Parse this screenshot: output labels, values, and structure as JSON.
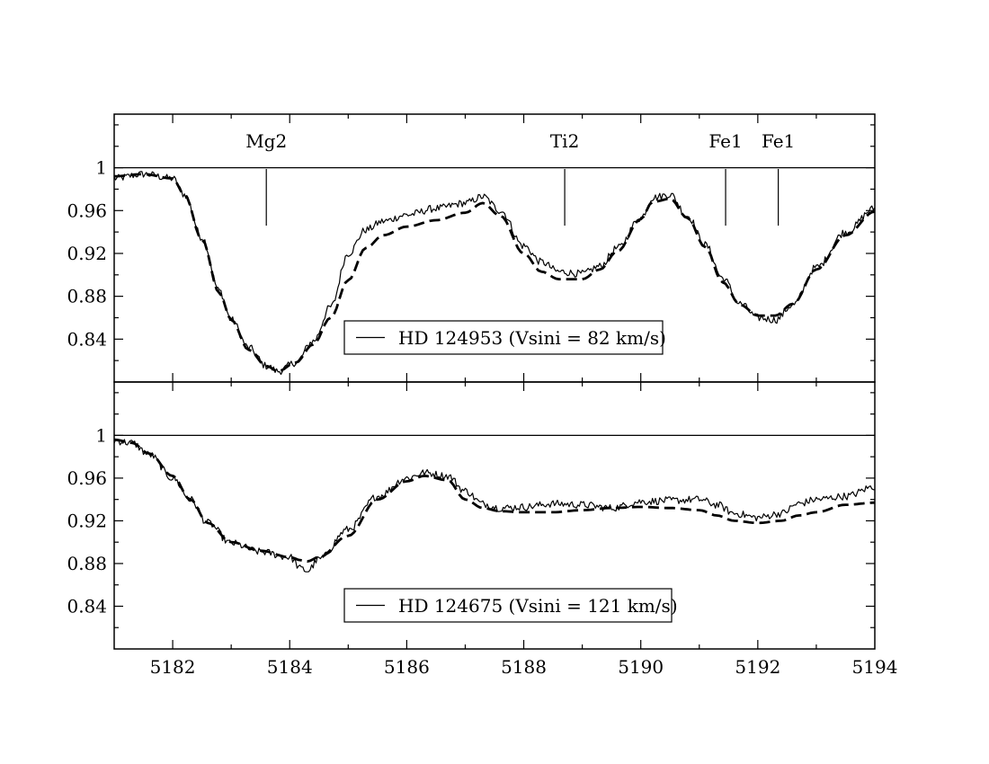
{
  "chart_data": [
    {
      "type": "line",
      "xlim": [
        5181,
        5194
      ],
      "ylim": [
        0.8,
        1.05
      ],
      "yticks": [
        0.84,
        0.88,
        0.92,
        0.96,
        1
      ],
      "ytick_labels": [
        "0.84",
        "0.88",
        "0.92",
        "0.96",
        "1"
      ],
      "xticks": [
        5182,
        5184,
        5186,
        5188,
        5190,
        5192,
        5194
      ],
      "xtick_labels": [
        "",
        "",
        "",
        "",
        "",
        "",
        ""
      ],
      "reference_line": 1.0,
      "line_markers": [
        {
          "label": "Mg2",
          "x": 5183.6
        },
        {
          "label": "Ti2",
          "x": 5188.7
        },
        {
          "label": "Fe1",
          "x": 5191.45
        },
        {
          "label": "Fe1",
          "x": 5192.35
        }
      ],
      "legend": {
        "label": "HD 124953 (Vsini = 82 km/s)",
        "placement": "lower-center"
      },
      "series": [
        {
          "name": "HD 124953 (Vsini = 82 km/s)",
          "style": "solid",
          "noise_amplitude": 0.0035,
          "x": [
            5181.0,
            5181.5,
            5182.0,
            5182.2,
            5182.5,
            5182.8,
            5183.0,
            5183.3,
            5183.6,
            5183.8,
            5184.1,
            5184.4,
            5184.7,
            5185.0,
            5185.3,
            5185.6,
            5186.0,
            5186.5,
            5187.0,
            5187.3,
            5187.6,
            5188.0,
            5188.3,
            5188.6,
            5189.0,
            5189.3,
            5189.6,
            5190.0,
            5190.2,
            5190.5,
            5190.8,
            5191.1,
            5191.4,
            5191.7,
            5192.0,
            5192.3,
            5192.6,
            5193.0,
            5193.5,
            5194.0
          ],
          "y": [
            0.99,
            0.994,
            0.99,
            0.975,
            0.935,
            0.885,
            0.858,
            0.832,
            0.815,
            0.81,
            0.818,
            0.838,
            0.87,
            0.92,
            0.942,
            0.95,
            0.956,
            0.962,
            0.967,
            0.973,
            0.96,
            0.927,
            0.912,
            0.903,
            0.901,
            0.908,
            0.925,
            0.953,
            0.972,
            0.975,
            0.955,
            0.928,
            0.897,
            0.873,
            0.86,
            0.858,
            0.872,
            0.907,
            0.94,
            0.962
          ]
        },
        {
          "name": "",
          "style": "dashed",
          "noise_amplitude": 0,
          "x": [
            5181.0,
            5181.5,
            5182.0,
            5182.2,
            5182.5,
            5182.8,
            5183.0,
            5183.3,
            5183.6,
            5183.8,
            5184.1,
            5184.4,
            5184.7,
            5185.0,
            5185.3,
            5185.6,
            5186.0,
            5186.5,
            5187.0,
            5187.3,
            5187.6,
            5188.0,
            5188.3,
            5188.6,
            5189.0,
            5189.3,
            5189.6,
            5190.0,
            5190.2,
            5190.5,
            5190.8,
            5191.1,
            5191.4,
            5191.7,
            5192.0,
            5192.3,
            5192.6,
            5193.0,
            5193.5,
            5194.0
          ],
          "y": [
            0.992,
            0.994,
            0.99,
            0.975,
            0.933,
            0.883,
            0.858,
            0.83,
            0.815,
            0.81,
            0.818,
            0.835,
            0.86,
            0.895,
            0.925,
            0.937,
            0.945,
            0.951,
            0.958,
            0.967,
            0.955,
            0.92,
            0.903,
            0.896,
            0.896,
            0.905,
            0.922,
            0.952,
            0.968,
            0.971,
            0.953,
            0.926,
            0.893,
            0.872,
            0.862,
            0.862,
            0.873,
            0.905,
            0.937,
            0.959
          ]
        }
      ]
    },
    {
      "type": "line",
      "xlim": [
        5181,
        5194
      ],
      "ylim": [
        0.8,
        1.05
      ],
      "yticks": [
        0.84,
        0.88,
        0.92,
        0.96,
        1
      ],
      "ytick_labels": [
        "0.84",
        "0.88",
        "0.92",
        "0.96",
        "1"
      ],
      "xticks": [
        5182,
        5184,
        5186,
        5188,
        5190,
        5192,
        5194
      ],
      "xtick_labels": [
        "5182",
        "5184",
        "5186",
        "5188",
        "5190",
        "5192",
        "5194"
      ],
      "reference_line": 1.0,
      "line_markers": [],
      "legend": {
        "label": "HD 124675 (Vsini = 121 km/s)",
        "placement": "lower-center"
      },
      "series": [
        {
          "name": "HD 124675 (Vsini = 121 km/s)",
          "style": "solid",
          "noise_amplitude": 0.0035,
          "x": [
            5181.0,
            5181.3,
            5181.6,
            5182.0,
            5182.3,
            5182.6,
            5183.0,
            5183.5,
            5184.0,
            5184.2,
            5184.3,
            5184.5,
            5185.0,
            5185.5,
            5186.0,
            5186.3,
            5186.7,
            5187.0,
            5187.3,
            5187.6,
            5188.0,
            5188.5,
            5189.0,
            5189.5,
            5190.0,
            5190.5,
            5191.0,
            5191.3,
            5191.6,
            5192.0,
            5192.4,
            5192.7,
            5193.0,
            5193.5,
            5194.0
          ],
          "y": [
            0.995,
            0.993,
            0.982,
            0.96,
            0.94,
            0.918,
            0.899,
            0.891,
            0.886,
            0.875,
            0.873,
            0.884,
            0.912,
            0.943,
            0.96,
            0.965,
            0.962,
            0.948,
            0.936,
            0.932,
            0.933,
            0.936,
            0.935,
            0.932,
            0.938,
            0.939,
            0.94,
            0.935,
            0.927,
            0.923,
            0.927,
            0.936,
            0.94,
            0.943,
            0.952
          ]
        },
        {
          "name": "",
          "style": "dashed",
          "noise_amplitude": 0,
          "x": [
            5181.0,
            5181.3,
            5181.6,
            5182.0,
            5182.3,
            5182.6,
            5183.0,
            5183.5,
            5184.0,
            5184.2,
            5184.3,
            5184.5,
            5185.0,
            5185.5,
            5186.0,
            5186.3,
            5186.7,
            5187.0,
            5187.3,
            5187.6,
            5188.0,
            5188.5,
            5189.0,
            5189.5,
            5190.0,
            5190.5,
            5191.0,
            5191.3,
            5191.6,
            5192.0,
            5192.4,
            5192.7,
            5193.0,
            5193.5,
            5194.0
          ],
          "y": [
            0.996,
            0.993,
            0.983,
            0.962,
            0.94,
            0.918,
            0.9,
            0.892,
            0.886,
            0.883,
            0.882,
            0.886,
            0.906,
            0.94,
            0.957,
            0.962,
            0.958,
            0.94,
            0.932,
            0.929,
            0.928,
            0.928,
            0.93,
            0.932,
            0.933,
            0.932,
            0.93,
            0.925,
            0.92,
            0.918,
            0.92,
            0.925,
            0.928,
            0.935,
            0.937
          ]
        }
      ]
    }
  ]
}
